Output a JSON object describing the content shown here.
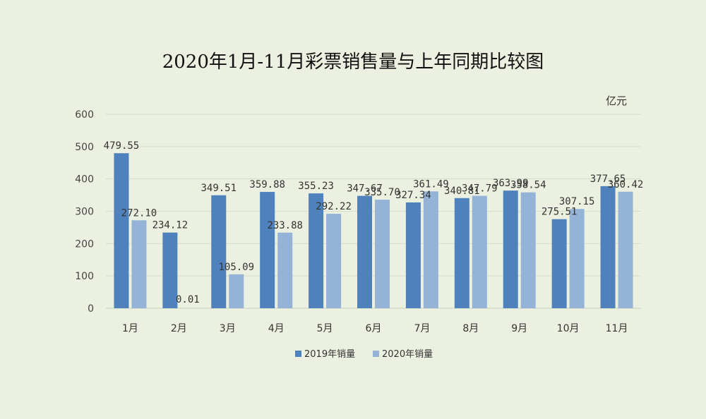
{
  "chart_data": {
    "type": "bar",
    "title": "2020年1月-11月彩票销售量与上年同期比较图",
    "unit_label": "亿元",
    "categories": [
      "1月",
      "2月",
      "3月",
      "4月",
      "5月",
      "6月",
      "7月",
      "8月",
      "9月",
      "10月",
      "11月"
    ],
    "series": [
      {
        "name": "2019年销量",
        "color": "#4f81bd",
        "values": [
          479.55,
          234.12,
          349.51,
          359.88,
          355.23,
          347.67,
          327.34,
          340.81,
          363.99,
          275.51,
          377.65
        ],
        "labels": [
          "479.55",
          "234.12",
          "349.51",
          "359.88",
          "355.23",
          "347.67",
          "327.34",
          "340.81",
          "363.99",
          "275.51",
          "377.65"
        ]
      },
      {
        "name": "2020年销量",
        "color": "#95b3d7",
        "values": [
          272.1,
          0.01,
          105.09,
          233.88,
          292.22,
          335.7,
          361.49,
          347.79,
          358.54,
          307.15,
          360.42
        ],
        "labels": [
          "272.10",
          "0.01",
          "105.09",
          "233.88",
          "292.22",
          "335.70",
          "361.49",
          "347.79",
          "358.54",
          "307.15",
          "360.42"
        ]
      }
    ],
    "yticks": [
      "0",
      "100",
      "200",
      "300",
      "400",
      "500",
      "600"
    ],
    "ylim": [
      0,
      600
    ],
    "grid": true,
    "legend_position": "bottom"
  }
}
